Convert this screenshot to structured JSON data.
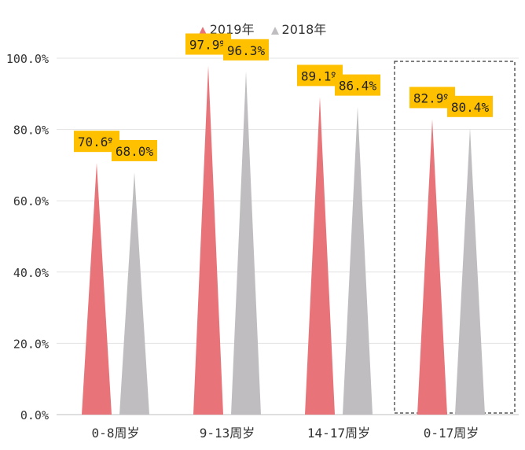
{
  "chart_data": {
    "type": "bar",
    "categories": [
      "0-8周岁",
      "9-13周岁",
      "14-17周岁",
      "0-17周岁"
    ],
    "series": [
      {
        "name": "2019年",
        "values": [
          70.6,
          97.9,
          89.1,
          82.9
        ],
        "labels": [
          "70.6%",
          "97.9%",
          "89.1%",
          "82.9%"
        ],
        "color": "#E87378"
      },
      {
        "name": "2018年",
        "values": [
          68.0,
          96.3,
          86.4,
          80.4
        ],
        "labels": [
          "68.0%",
          "96.3%",
          "86.4%",
          "80.4%"
        ],
        "color": "#BFBDC0"
      }
    ],
    "ylim": [
      0,
      100
    ],
    "yticks": [
      "0.0%",
      "20.0%",
      "40.0%",
      "60.0%",
      "80.0%",
      "100.0%"
    ],
    "grid": true,
    "legend_position": "top",
    "highlighted_category": "0-17周岁",
    "label_background": "#FFC000"
  }
}
